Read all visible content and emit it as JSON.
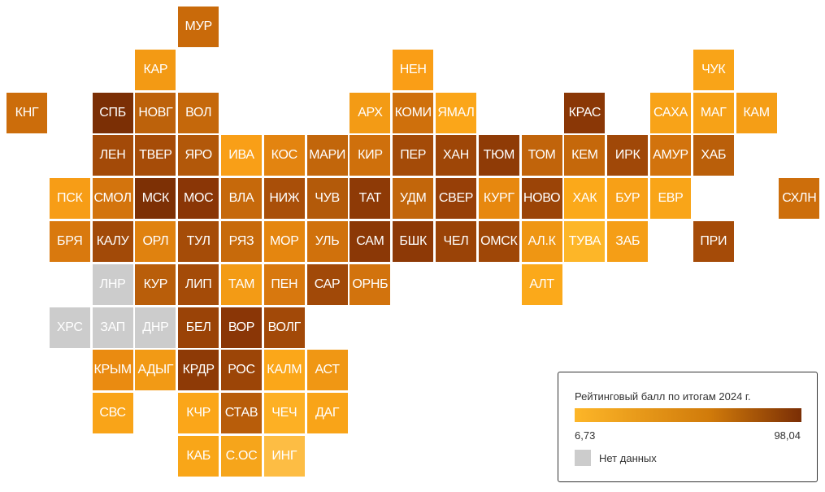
{
  "regions": [
    {
      "code": "МУР",
      "col": 4,
      "row": 0,
      "color": "#c96a0a"
    },
    {
      "code": "КАР",
      "col": 3,
      "row": 1,
      "color": "#f39a14"
    },
    {
      "code": "НЕН",
      "col": 9,
      "row": 1,
      "color": "#fa9e16"
    },
    {
      "code": "ЧУК",
      "col": 16,
      "row": 1,
      "color": "#f9a418"
    },
    {
      "code": "КНГ",
      "col": 0,
      "row": 2,
      "color": "#cc6d0b"
    },
    {
      "code": "СПБ",
      "col": 2,
      "row": 2,
      "color": "#7b2f05"
    },
    {
      "code": "НОВГ",
      "col": 3,
      "row": 2,
      "color": "#bd620b"
    },
    {
      "code": "ВОЛ",
      "col": 4,
      "row": 2,
      "color": "#c5680b"
    },
    {
      "code": "АРХ",
      "col": 8,
      "row": 2,
      "color": "#f39b15"
    },
    {
      "code": "КОМИ",
      "col": 9,
      "row": 2,
      "color": "#cf700c"
    },
    {
      "code": "ЯМАЛ",
      "col": 10,
      "row": 2,
      "color": "#fba619"
    },
    {
      "code": "КРАС",
      "col": 13,
      "row": 2,
      "color": "#8a3706"
    },
    {
      "code": "САХА",
      "col": 15,
      "row": 2,
      "color": "#f8a318"
    },
    {
      "code": "МАГ",
      "col": 16,
      "row": 2,
      "color": "#f7a217"
    },
    {
      "code": "КАМ",
      "col": 17,
      "row": 2,
      "color": "#f59e16"
    },
    {
      "code": "ЛЕН",
      "col": 2,
      "row": 3,
      "color": "#a34a08"
    },
    {
      "code": "ТВЕР",
      "col": 3,
      "row": 3,
      "color": "#a64c08"
    },
    {
      "code": "ЯРО",
      "col": 4,
      "row": 3,
      "color": "#b2580a"
    },
    {
      "code": "ИВА",
      "col": 5,
      "row": 3,
      "color": "#f99f17"
    },
    {
      "code": "КОС",
      "col": 6,
      "row": 3,
      "color": "#e38410"
    },
    {
      "code": "МАРИ",
      "col": 7,
      "row": 3,
      "color": "#c2660b"
    },
    {
      "code": "КИР",
      "col": 8,
      "row": 3,
      "color": "#cf700c"
    },
    {
      "code": "ПЕР",
      "col": 9,
      "row": 3,
      "color": "#a44b08"
    },
    {
      "code": "ХАН",
      "col": 10,
      "row": 3,
      "color": "#9e4607"
    },
    {
      "code": "ТЮМ",
      "col": 11,
      "row": 3,
      "color": "#8f3b06"
    },
    {
      "code": "ТОМ",
      "col": 12,
      "row": 3,
      "color": "#c1640b"
    },
    {
      "code": "КЕМ",
      "col": 13,
      "row": 3,
      "color": "#c5680b"
    },
    {
      "code": "ИРК",
      "col": 14,
      "row": 3,
      "color": "#a04808"
    },
    {
      "code": "АМУР",
      "col": 15,
      "row": 3,
      "color": "#d2730d"
    },
    {
      "code": "ХАБ",
      "col": 16,
      "row": 3,
      "color": "#ba5f0a"
    },
    {
      "code": "ПСК",
      "col": 1,
      "row": 4,
      "color": "#f79d16"
    },
    {
      "code": "СМОЛ",
      "col": 2,
      "row": 4,
      "color": "#d3740d"
    },
    {
      "code": "МСК",
      "col": 3,
      "row": 4,
      "color": "#7d3005"
    },
    {
      "code": "МОС",
      "col": 4,
      "row": 4,
      "color": "#8a3606"
    },
    {
      "code": "ВЛА",
      "col": 5,
      "row": 4,
      "color": "#c6690b"
    },
    {
      "code": "НИЖ",
      "col": 6,
      "row": 4,
      "color": "#a94f09"
    },
    {
      "code": "ЧУВ",
      "col": 7,
      "row": 4,
      "color": "#b35a0a"
    },
    {
      "code": "ТАТ",
      "col": 8,
      "row": 4,
      "color": "#8e3a06"
    },
    {
      "code": "УДМ",
      "col": 9,
      "row": 4,
      "color": "#c2660b"
    },
    {
      "code": "СВЕР",
      "col": 10,
      "row": 4,
      "color": "#973f07"
    },
    {
      "code": "КУРГ",
      "col": 11,
      "row": 4,
      "color": "#e7880f"
    },
    {
      "code": "НОВО",
      "col": 12,
      "row": 4,
      "color": "#9b4407"
    },
    {
      "code": "ХАК",
      "col": 13,
      "row": 4,
      "color": "#fba91a"
    },
    {
      "code": "БУР",
      "col": 14,
      "row": 4,
      "color": "#f7a017"
    },
    {
      "code": "ЕВР",
      "col": 15,
      "row": 4,
      "color": "#f9a518"
    },
    {
      "code": "СХЛН",
      "col": 18,
      "row": 4,
      "color": "#cd6e0b"
    },
    {
      "code": "БРЯ",
      "col": 1,
      "row": 5,
      "color": "#d9790e"
    },
    {
      "code": "КАЛУ",
      "col": 2,
      "row": 5,
      "color": "#a24a08"
    },
    {
      "code": "ОРЛ",
      "col": 3,
      "row": 5,
      "color": "#e0820f"
    },
    {
      "code": "ТУЛ",
      "col": 4,
      "row": 5,
      "color": "#a54c08"
    },
    {
      "code": "РЯЗ",
      "col": 5,
      "row": 5,
      "color": "#c76a0b"
    },
    {
      "code": "МОР",
      "col": 6,
      "row": 5,
      "color": "#e5860f"
    },
    {
      "code": "УЛЬ",
      "col": 7,
      "row": 5,
      "color": "#d0710c"
    },
    {
      "code": "САМ",
      "col": 8,
      "row": 5,
      "color": "#8b3806"
    },
    {
      "code": "БШК",
      "col": 9,
      "row": 5,
      "color": "#8d3906"
    },
    {
      "code": "ЧЕЛ",
      "col": 10,
      "row": 5,
      "color": "#9a4307"
    },
    {
      "code": "ОМСК",
      "col": 11,
      "row": 5,
      "color": "#9f4707"
    },
    {
      "code": "АЛ.К",
      "col": 12,
      "row": 5,
      "color": "#ef9613"
    },
    {
      "code": "ТУВА",
      "col": 13,
      "row": 5,
      "color": "#fdb628"
    },
    {
      "code": "ЗАБ",
      "col": 14,
      "row": 5,
      "color": "#f59e16"
    },
    {
      "code": "ПРИ",
      "col": 16,
      "row": 5,
      "color": "#a54b08"
    },
    {
      "code": "ЛНР",
      "col": 2,
      "row": 6,
      "color": "#cccccc"
    },
    {
      "code": "КУР",
      "col": 3,
      "row": 6,
      "color": "#b95e0a"
    },
    {
      "code": "ЛИП",
      "col": 4,
      "row": 6,
      "color": "#a44b08"
    },
    {
      "code": "ТАМ",
      "col": 5,
      "row": 6,
      "color": "#f39b15"
    },
    {
      "code": "ПЕН",
      "col": 6,
      "row": 6,
      "color": "#d8780e"
    },
    {
      "code": "САР",
      "col": 7,
      "row": 6,
      "color": "#a14908"
    },
    {
      "code": "ОРНБ",
      "col": 8,
      "row": 6,
      "color": "#d2730d"
    },
    {
      "code": "АЛТ",
      "col": 12,
      "row": 6,
      "color": "#fba91a"
    },
    {
      "code": "ХРС",
      "col": 1,
      "row": 7,
      "color": "#cccccc"
    },
    {
      "code": "ЗАП",
      "col": 2,
      "row": 7,
      "color": "#cccccc"
    },
    {
      "code": "ДНР",
      "col": 3,
      "row": 7,
      "color": "#cccccc"
    },
    {
      "code": "БЕЛ",
      "col": 4,
      "row": 7,
      "color": "#9a4307"
    },
    {
      "code": "ВОР",
      "col": 5,
      "row": 7,
      "color": "#8a3606"
    },
    {
      "code": "ВОЛГ",
      "col": 6,
      "row": 7,
      "color": "#a24908"
    },
    {
      "code": "КРЫМ",
      "col": 2,
      "row": 8,
      "color": "#ea8b11"
    },
    {
      "code": "АДЫГ",
      "col": 3,
      "row": 8,
      "color": "#f29a15"
    },
    {
      "code": "КРДР",
      "col": 4,
      "row": 8,
      "color": "#8e3a06"
    },
    {
      "code": "РОС",
      "col": 5,
      "row": 8,
      "color": "#9c4507"
    },
    {
      "code": "КАЛМ",
      "col": 6,
      "row": 8,
      "color": "#fba719"
    },
    {
      "code": "АСТ",
      "col": 7,
      "row": 8,
      "color": "#f09714"
    },
    {
      "code": "СВС",
      "col": 2,
      "row": 9,
      "color": "#f9a418"
    },
    {
      "code": "КЧР",
      "col": 4,
      "row": 9,
      "color": "#fba619"
    },
    {
      "code": "СТАВ",
      "col": 5,
      "row": 9,
      "color": "#b85d0a"
    },
    {
      "code": "ЧЕЧ",
      "col": 6,
      "row": 9,
      "color": "#fdb024"
    },
    {
      "code": "ДАГ",
      "col": 7,
      "row": 9,
      "color": "#f9a418"
    },
    {
      "code": "КАБ",
      "col": 4,
      "row": 10,
      "color": "#f9a618"
    },
    {
      "code": "С.ОС",
      "col": 5,
      "row": 10,
      "color": "#f6a51b"
    },
    {
      "code": "ИНГ",
      "col": 6,
      "row": 10,
      "color": "#fdbd44"
    }
  ],
  "legend": {
    "title": "Рейтинговый балл по итогам 2024 г.",
    "min_label": "6,73",
    "max_label": "98,04",
    "nodata_label": "Нет данных",
    "color_low": "#fdb628",
    "color_mid": "#d07a0a",
    "color_high": "#7a2e05",
    "nodata_color": "#cccccc"
  }
}
